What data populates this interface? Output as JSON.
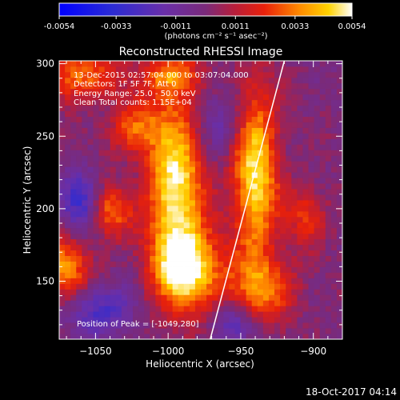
{
  "colorbar": {
    "ticks": [
      "-0.0054",
      "-0.0033",
      "-0.0011",
      "0.0011",
      "0.0033",
      "0.0054"
    ],
    "unit_label": "(photons cm⁻² s⁻¹ asec⁻²)",
    "range": [
      -0.0054,
      0.0054
    ]
  },
  "chart_data": {
    "type": "heatmap",
    "title": "Reconstructed RHESSI Image",
    "xlabel": "Heliocentric X (arcsec)",
    "ylabel": "Heliocentric Y (arcsec)",
    "xlim": [
      -1075,
      -880
    ],
    "ylim": [
      110,
      302
    ],
    "x_ticks": [
      -1050,
      -1000,
      -950,
      -900
    ],
    "x_tick_labels": [
      "−1050",
      "−1000",
      "−950",
      "−900"
    ],
    "y_ticks": [
      150,
      200,
      250,
      300
    ],
    "y_tick_labels": [
      "150",
      "200",
      "250",
      "300"
    ],
    "annotations": [
      "13-Dec-2015 02:57:04.000 to 03:07:04.000",
      "Detectors: 1F 5F 7F, Att 0",
      "Energy Range: 25.0 - 50.0 keV",
      "Clean   Total counts: 1.15E+04"
    ],
    "peak_label": "Position of Peak = [-1049,280]",
    "blobs": [
      {
        "x": -995,
        "y": 215,
        "sx": 14,
        "sy": 48,
        "amp": 0.0052
      },
      {
        "x": -985,
        "y": 158,
        "sx": 16,
        "sy": 18,
        "amp": 0.0045
      },
      {
        "x": -940,
        "y": 225,
        "sx": 11,
        "sy": 42,
        "amp": 0.005
      },
      {
        "x": -1040,
        "y": 198,
        "sx": 10,
        "sy": 12,
        "amp": 0.0034
      },
      {
        "x": -1072,
        "y": 158,
        "sx": 12,
        "sy": 14,
        "amp": 0.0038
      },
      {
        "x": -1062,
        "y": 292,
        "sx": 20,
        "sy": 12,
        "amp": 0.0032
      },
      {
        "x": -1025,
        "y": 255,
        "sx": 12,
        "sy": 12,
        "amp": 0.0026
      },
      {
        "x": -935,
        "y": 145,
        "sx": 16,
        "sy": 16,
        "amp": 0.003
      },
      {
        "x": -905,
        "y": 195,
        "sx": 10,
        "sy": 14,
        "amp": 0.0022
      },
      {
        "x": -1000,
        "y": 292,
        "sx": 14,
        "sy": 10,
        "amp": 0.0024
      },
      {
        "x": -1060,
        "y": 205,
        "sx": 10,
        "sy": 14,
        "amp": -0.003
      },
      {
        "x": -1045,
        "y": 130,
        "sx": 16,
        "sy": 12,
        "amp": -0.0025
      },
      {
        "x": -955,
        "y": 120,
        "sx": 12,
        "sy": 10,
        "amp": -0.002
      },
      {
        "x": -965,
        "y": 260,
        "sx": 14,
        "sy": 16,
        "amp": -0.0018
      }
    ],
    "limb_line": [
      [
        -971,
        110
      ],
      [
        -920,
        302
      ]
    ]
  },
  "footer": {
    "timestamp": "18-Oct-2017 04:14"
  },
  "colors": {
    "background": "#000000",
    "text": "#ffffff"
  }
}
